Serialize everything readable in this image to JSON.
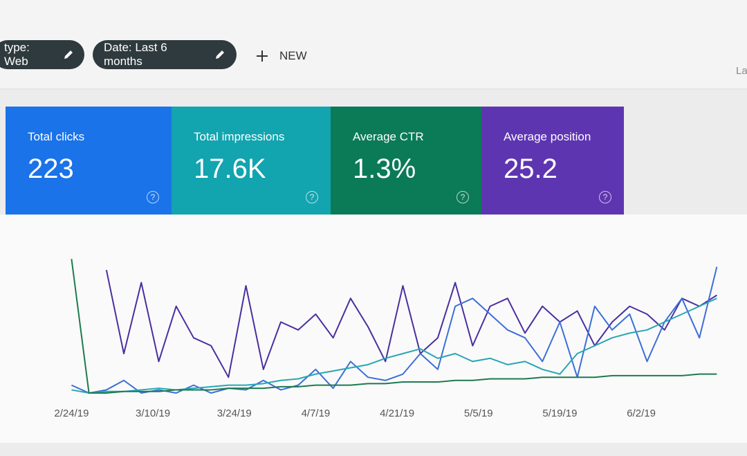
{
  "header": {
    "chips": [
      "type: Web",
      "Date: Last 6 months"
    ],
    "new_button": "NEW",
    "corner_text": "La"
  },
  "cards": [
    {
      "label": "Total clicks",
      "value": "223",
      "color": "#1a73e8"
    },
    {
      "label": "Total impressions",
      "value": "17.6K",
      "color": "#12a4af"
    },
    {
      "label": "Average CTR",
      "value": "1.3%",
      "color": "#0b7a57"
    },
    {
      "label": "Average position",
      "value": "25.2",
      "color": "#5e35b1"
    }
  ],
  "chart": {
    "type": "line",
    "x": [
      0,
      3,
      6,
      9,
      12,
      15,
      18,
      21,
      24,
      27,
      30,
      33,
      36,
      39,
      42,
      45,
      48,
      51,
      54,
      57,
      60,
      63,
      66,
      69,
      72,
      75,
      78,
      81,
      84,
      87,
      90,
      93,
      96,
      99,
      102,
      105,
      108,
      111
    ],
    "xlim": [
      -1,
      115
    ],
    "xticks": [
      {
        "value": 0,
        "label": "2/24/19"
      },
      {
        "value": 14,
        "label": "3/10/19"
      },
      {
        "value": 28,
        "label": "3/24/19"
      },
      {
        "value": 42,
        "label": "4/7/19"
      },
      {
        "value": 56,
        "label": "4/21/19"
      },
      {
        "value": 70,
        "label": "5/5/19"
      },
      {
        "value": 84,
        "label": "5/19/19"
      },
      {
        "value": 98,
        "label": "6/2/19"
      }
    ],
    "ylim": [
      0,
      100
    ],
    "series": [
      {
        "color": "#4a2ea0",
        "values": [
          null,
          null,
          78,
          25,
          70,
          20,
          55,
          35,
          30,
          10,
          68,
          15,
          45,
          40,
          50,
          35,
          60,
          42,
          20,
          68,
          25,
          35,
          70,
          30,
          55,
          60,
          38,
          55,
          45,
          52,
          30,
          45,
          55,
          50,
          40,
          60,
          55,
          62
        ]
      },
      {
        "color": "#3b6fd8",
        "values": [
          5,
          0,
          2,
          8,
          0,
          2,
          0,
          5,
          0,
          3,
          2,
          8,
          2,
          5,
          15,
          3,
          20,
          10,
          8,
          12,
          25,
          15,
          55,
          60,
          50,
          40,
          35,
          20,
          45,
          10,
          55,
          40,
          50,
          20,
          45,
          60,
          35,
          80
        ]
      },
      {
        "color": "#26a6b5",
        "values": [
          2,
          0,
          1,
          1,
          2,
          3,
          2,
          3,
          4,
          5,
          5,
          6,
          8,
          9,
          12,
          14,
          16,
          18,
          22,
          25,
          28,
          22,
          25,
          20,
          22,
          18,
          20,
          15,
          12,
          25,
          30,
          35,
          38,
          40,
          45,
          50,
          55,
          60
        ]
      },
      {
        "color": "#1d7a4f",
        "values": [
          85,
          0,
          0,
          1,
          1,
          1,
          2,
          2,
          2,
          3,
          3,
          3,
          4,
          4,
          5,
          5,
          5,
          6,
          6,
          7,
          7,
          7,
          8,
          8,
          9,
          9,
          9,
          10,
          10,
          10,
          10,
          11,
          11,
          11,
          11,
          11,
          12,
          12
        ]
      }
    ]
  }
}
